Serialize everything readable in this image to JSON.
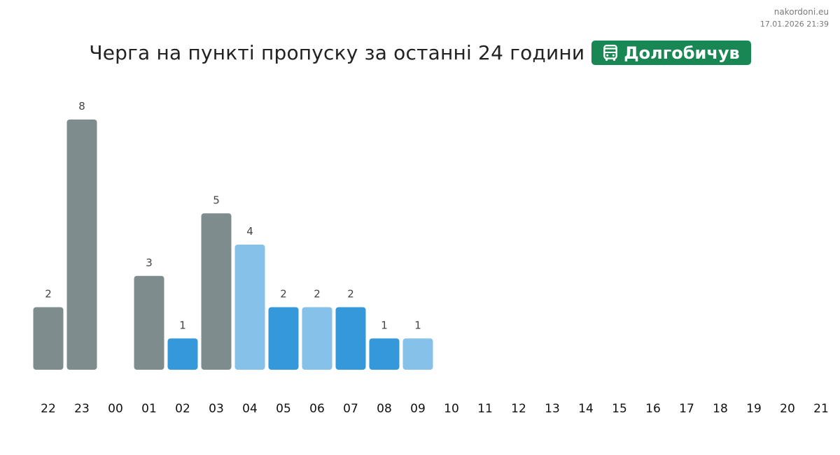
{
  "header": {
    "site": "nakordoni.eu",
    "timestamp": "17.01.2026 21:39",
    "title": "Черга на пункті пропуску за останні 24 години",
    "checkpoint_name": "Долгобичув",
    "checkpoint_icon": "bus-icon",
    "badge_color": "#198754"
  },
  "chart_data": {
    "type": "bar",
    "categories": [
      "22",
      "23",
      "00",
      "01",
      "02",
      "03",
      "04",
      "05",
      "06",
      "07",
      "08",
      "09",
      "10",
      "11",
      "12",
      "13",
      "14",
      "15",
      "16",
      "17",
      "18",
      "19",
      "20",
      "21"
    ],
    "values": [
      2,
      8,
      null,
      3,
      1,
      5,
      4,
      2,
      2,
      2,
      1,
      1,
      null,
      null,
      null,
      null,
      null,
      null,
      null,
      null,
      null,
      null,
      null,
      null
    ],
    "colors": [
      "#7f8c8d",
      "#7f8c8d",
      null,
      "#7f8c8d",
      "#3498db",
      "#7f8c8d",
      "#85c1e9",
      "#3498db",
      "#85c1e9",
      "#3498db",
      "#3498db",
      "#85c1e9",
      null,
      null,
      null,
      null,
      null,
      null,
      null,
      null,
      null,
      null,
      null,
      null
    ],
    "ylim": [
      0,
      8
    ],
    "grid": false,
    "legend": "none",
    "title": "",
    "xlabel": "",
    "ylabel": ""
  }
}
